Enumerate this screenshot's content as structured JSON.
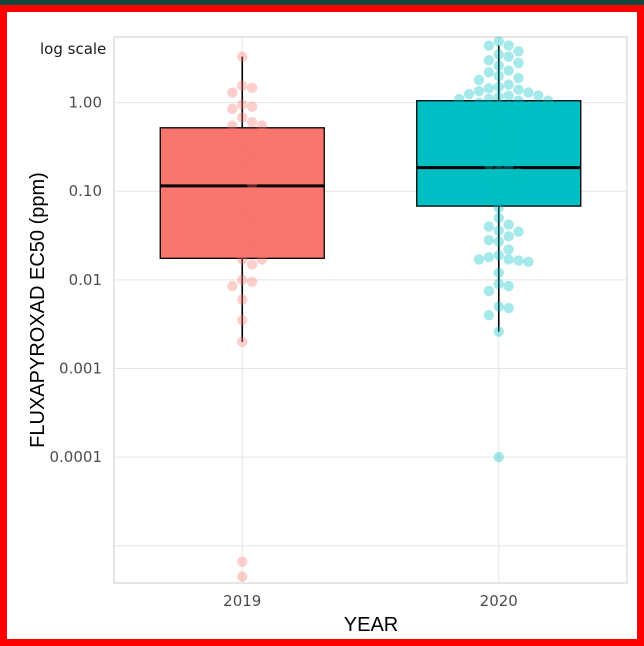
{
  "chart_data": {
    "type": "boxplot",
    "title": "",
    "annotation": "log scale",
    "xlabel": "YEAR",
    "ylabel": "FLUXAPYROXAD EC50 (ppm)",
    "y_scale": "log10",
    "ylim": [
      3.8e-06,
      5.5
    ],
    "yticks": [
      1,
      0.1,
      0.01,
      0.001,
      0.0001
    ],
    "ytick_labels": [
      "1.00",
      "0.10",
      "0.01",
      "0.001",
      "0.0001"
    ],
    "categories": [
      "2019",
      "2020"
    ],
    "grid": true,
    "legend": "none",
    "series": [
      {
        "category": "2019",
        "color": "#f8766d",
        "box": {
          "whisker_low": 0.002,
          "q1": 0.0175,
          "median": 0.115,
          "q3": 0.52,
          "whisker_high": 3.3
        },
        "points": [
          3.3,
          1.55,
          1.47,
          1.3,
          0.95,
          0.9,
          0.85,
          0.68,
          0.6,
          0.55,
          0.55,
          0.3,
          0.25,
          0.2,
          0.15,
          0.12,
          0.08,
          0.06,
          0.05,
          0.04,
          0.03,
          0.025,
          0.017,
          0.017,
          0.015,
          0.01,
          0.0095,
          0.0085,
          0.006,
          0.0035,
          0.002,
          6.6e-06,
          4.5e-06
        ]
      },
      {
        "category": "2020",
        "color": "#00bfc4",
        "box": {
          "whisker_low": 0.0026,
          "q1": 0.068,
          "median": 0.185,
          "q3": 1.05,
          "whisker_high": 4.4
        },
        "points": [
          4.9,
          4.4,
          4.4,
          3.8,
          3.5,
          3.3,
          3.0,
          2.8,
          2.6,
          2.3,
          2.2,
          2.0,
          1.9,
          1.8,
          1.6,
          1.5,
          1.45,
          1.4,
          1.35,
          1.3,
          1.25,
          1.2,
          1.2,
          1.15,
          1.1,
          1.1,
          1.05,
          1.05,
          1.0,
          0.9,
          0.8,
          0.7,
          0.6,
          0.5,
          0.45,
          0.35,
          0.3,
          0.28,
          0.25,
          0.22,
          0.2,
          0.18,
          0.17,
          0.16,
          0.15,
          0.13,
          0.12,
          0.1,
          0.08,
          0.065,
          0.05,
          0.042,
          0.04,
          0.036,
          0.035,
          0.031,
          0.028,
          0.027,
          0.022,
          0.019,
          0.018,
          0.017,
          0.017,
          0.016,
          0.0165,
          0.012,
          0.009,
          0.0085,
          0.0075,
          0.005,
          0.0048,
          0.004,
          0.0026,
          0.0001
        ]
      }
    ]
  }
}
